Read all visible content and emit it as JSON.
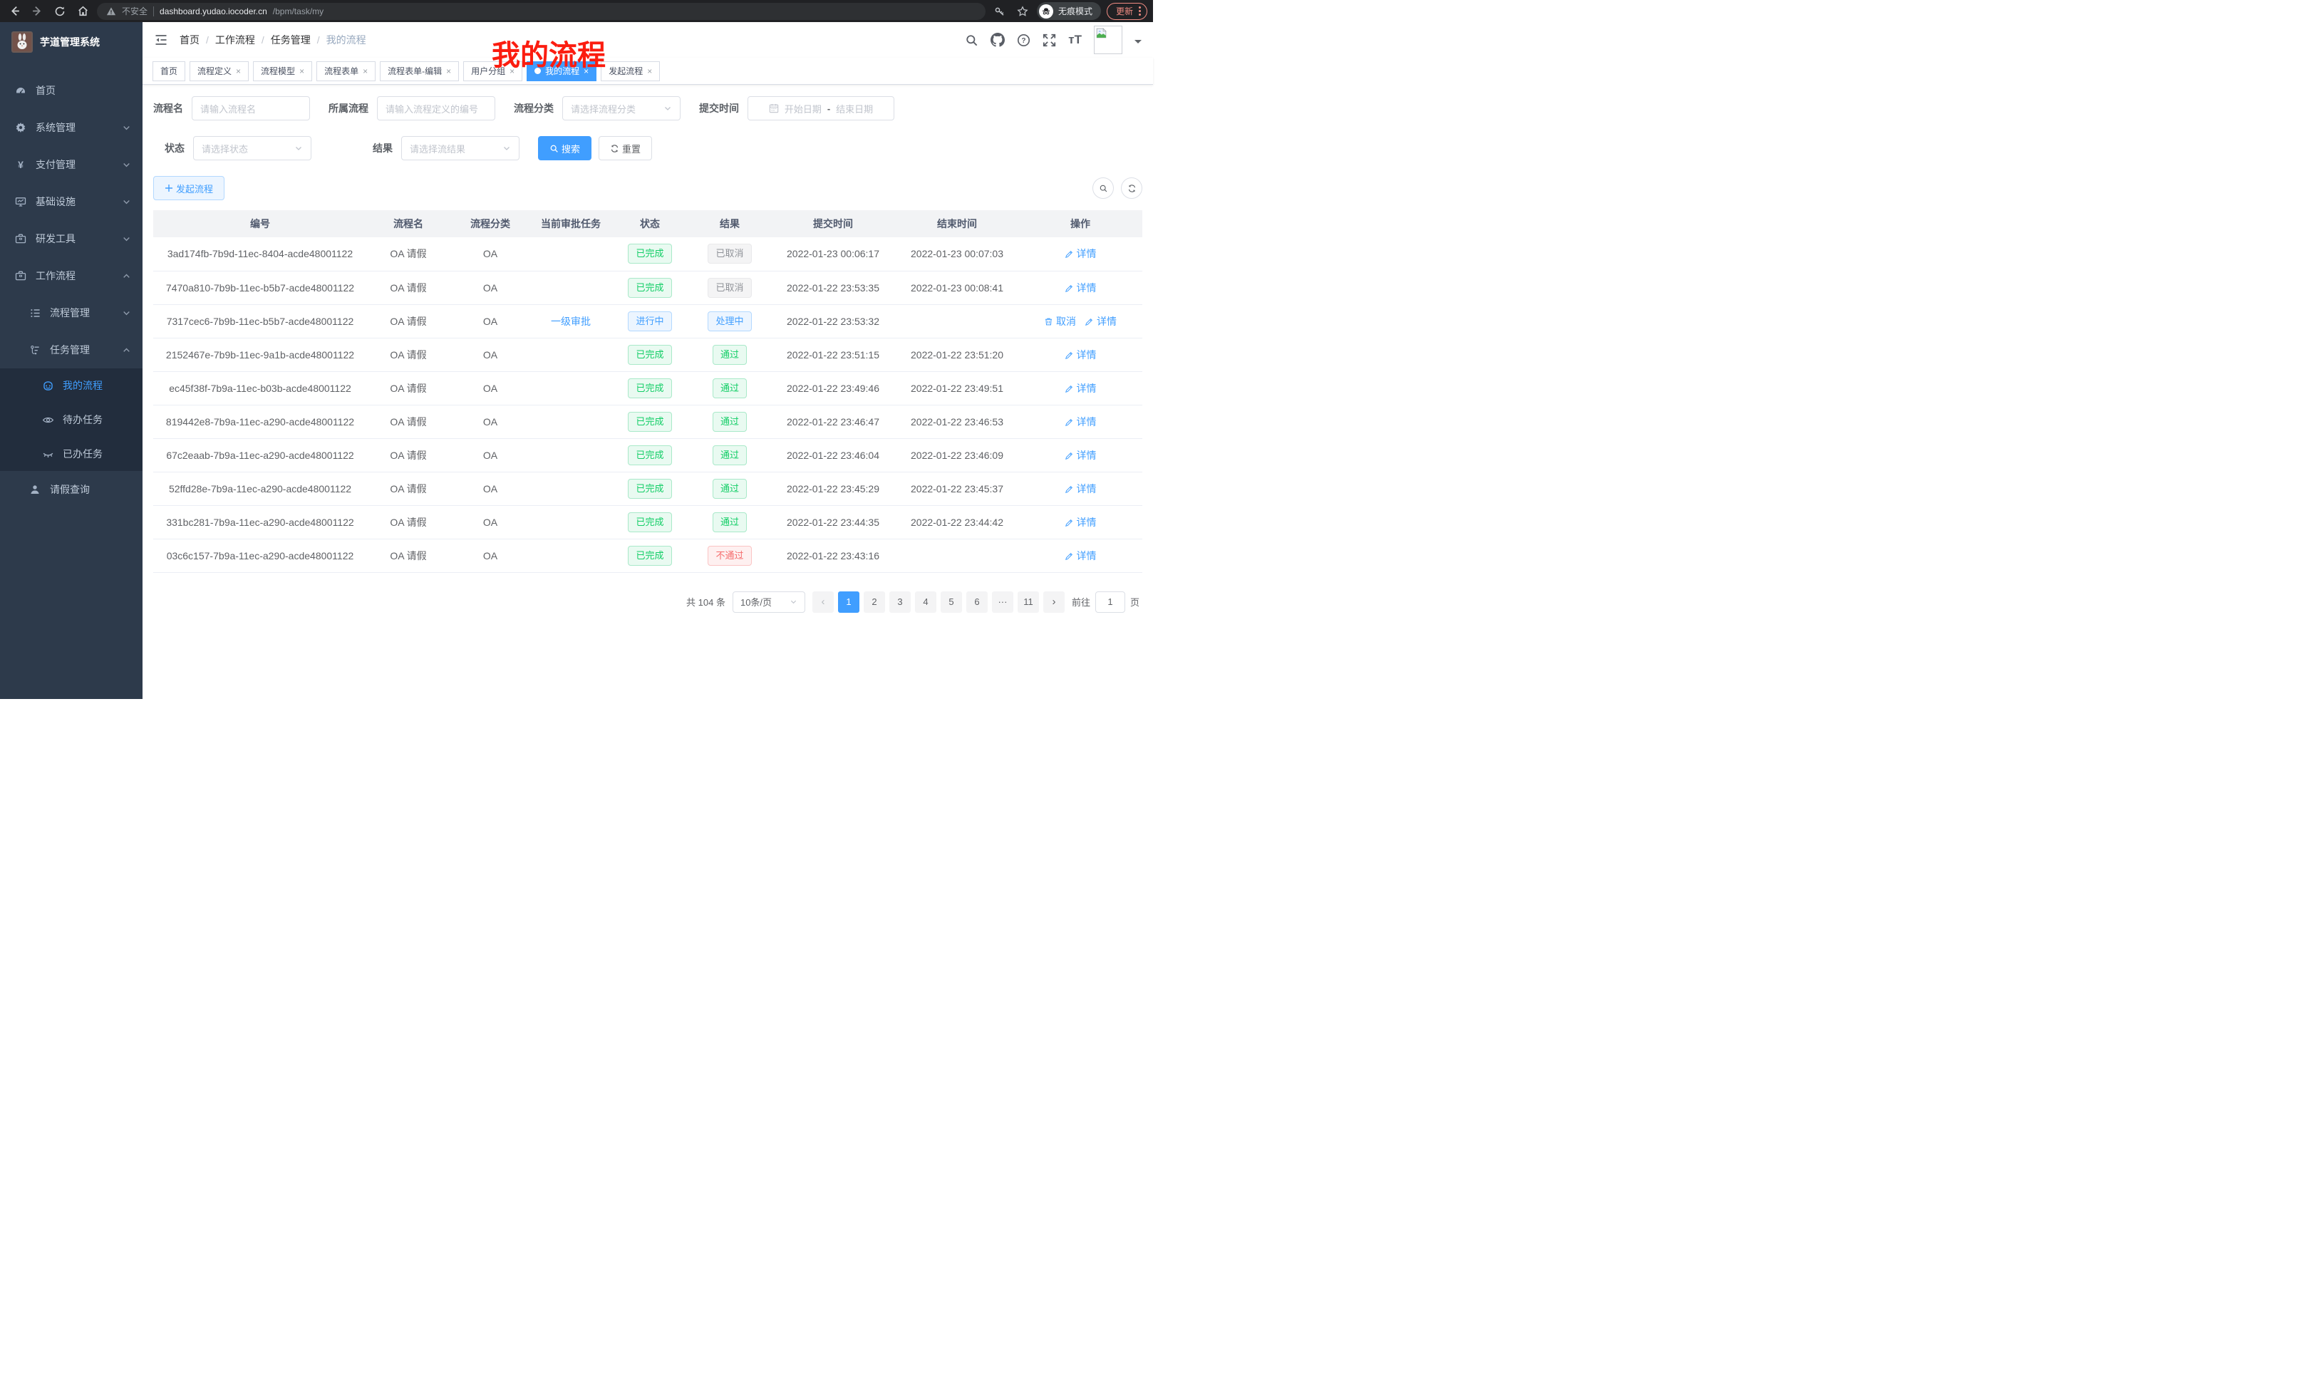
{
  "browser": {
    "security_label": "不安全",
    "url_host": "dashboard.yudao.iocoder.cn",
    "url_path": "/bpm/task/my",
    "incognito_label": "无痕模式",
    "update_label": "更新",
    "nav_icons": [
      "back-icon",
      "forward-icon",
      "reload-icon",
      "home-icon"
    ],
    "omnibox_icons": [
      "warning-icon",
      "key-icon",
      "star-icon"
    ]
  },
  "sidebar": {
    "title": "芋道管理系统",
    "logo_icon": "bunny-avatar",
    "items": [
      {
        "label": "首页",
        "icon": "gauge-icon",
        "indent": 1,
        "chevron": "",
        "active": false
      },
      {
        "label": "系统管理",
        "icon": "gear-icon",
        "indent": 1,
        "chevron": "down",
        "active": false
      },
      {
        "label": "支付管理",
        "icon": "yen-icon",
        "indent": 1,
        "chevron": "down",
        "active": false
      },
      {
        "label": "基础设施",
        "icon": "monitor-icon",
        "indent": 1,
        "chevron": "down",
        "active": false
      },
      {
        "label": "研发工具",
        "icon": "briefcase-icon",
        "indent": 1,
        "chevron": "down",
        "active": false
      },
      {
        "label": "工作流程",
        "icon": "briefcase-icon",
        "indent": 1,
        "chevron": "up",
        "active": false
      },
      {
        "label": "流程管理",
        "icon": "list-tree-icon",
        "indent": 2,
        "chevron": "down",
        "active": false
      },
      {
        "label": "任务管理",
        "icon": "flow-icon",
        "indent": 2,
        "chevron": "up",
        "active": false
      },
      {
        "label": "我的流程",
        "icon": "robot-icon",
        "indent": 3,
        "chevron": "",
        "active": true
      },
      {
        "label": "待办任务",
        "icon": "eye-open-icon",
        "indent": 3,
        "chevron": "",
        "active": false
      },
      {
        "label": "已办任务",
        "icon": "eye-closed-icon",
        "indent": 3,
        "chevron": "",
        "active": false
      },
      {
        "label": "请假查询",
        "icon": "user-icon",
        "indent": 2,
        "chevron": "",
        "active": false
      }
    ]
  },
  "navbar": {
    "breadcrumb": [
      "首页",
      "工作流程",
      "任务管理",
      "我的流程"
    ],
    "tool_icons": [
      "search-icon",
      "github-icon",
      "help-icon",
      "fullscreen-icon",
      "font-size-icon",
      "avatar-image",
      "caret-down-icon"
    ],
    "annotation": "我的流程"
  },
  "tabs": [
    {
      "label": "首页",
      "closable": false,
      "active": false
    },
    {
      "label": "流程定义",
      "closable": true,
      "active": false
    },
    {
      "label": "流程模型",
      "closable": true,
      "active": false
    },
    {
      "label": "流程表单",
      "closable": true,
      "active": false
    },
    {
      "label": "流程表单-编辑",
      "closable": true,
      "active": false
    },
    {
      "label": "用户分组",
      "closable": true,
      "active": false
    },
    {
      "label": "我的流程",
      "closable": true,
      "active": true
    },
    {
      "label": "发起流程",
      "closable": true,
      "active": false
    }
  ],
  "filters": {
    "name_label": "流程名",
    "name_placeholder": "请输入流程名",
    "definition_label": "所属流程",
    "definition_placeholder": "请输入流程定义的编号",
    "category_label": "流程分类",
    "category_placeholder": "请选择流程分类",
    "time_label": "提交时间",
    "time_start_placeholder": "开始日期",
    "time_separator": "-",
    "time_end_placeholder": "结束日期",
    "status_label": "状态",
    "status_placeholder": "请选择状态",
    "result_label": "结果",
    "result_placeholder": "请选择流结果",
    "search_label": "搜索",
    "reset_label": "重置"
  },
  "toolbar": {
    "create_label": "发起流程"
  },
  "table": {
    "headers": [
      "编号",
      "流程名",
      "流程分类",
      "当前审批任务",
      "状态",
      "结果",
      "提交时间",
      "结束时间",
      "操作"
    ],
    "rows": [
      {
        "id": "3ad174fb-7b9d-11ec-8404-acde48001122",
        "name": "OA 请假",
        "category": "OA",
        "task": "",
        "status": {
          "text": "已完成",
          "type": "success"
        },
        "result": {
          "text": "已取消",
          "type": "info"
        },
        "submit": "2022-01-23 00:06:17",
        "end": "2022-01-23 00:07:03",
        "actions": [
          {
            "text": "详情",
            "icon": "edit-icon"
          }
        ]
      },
      {
        "id": "7470a810-7b9b-11ec-b5b7-acde48001122",
        "name": "OA 请假",
        "category": "OA",
        "task": "",
        "status": {
          "text": "已完成",
          "type": "success"
        },
        "result": {
          "text": "已取消",
          "type": "info"
        },
        "submit": "2022-01-22 23:53:35",
        "end": "2022-01-23 00:08:41",
        "actions": [
          {
            "text": "详情",
            "icon": "edit-icon"
          }
        ]
      },
      {
        "id": "7317cec6-7b9b-11ec-b5b7-acde48001122",
        "name": "OA 请假",
        "category": "OA",
        "task": "一级审批",
        "status": {
          "text": "进行中",
          "type": "primary"
        },
        "result": {
          "text": "处理中",
          "type": "primary"
        },
        "submit": "2022-01-22 23:53:32",
        "end": "",
        "actions": [
          {
            "text": "取消",
            "icon": "trash-icon"
          },
          {
            "text": "详情",
            "icon": "edit-icon"
          }
        ]
      },
      {
        "id": "2152467e-7b9b-11ec-9a1b-acde48001122",
        "name": "OA 请假",
        "category": "OA",
        "task": "",
        "status": {
          "text": "已完成",
          "type": "success"
        },
        "result": {
          "text": "通过",
          "type": "success"
        },
        "submit": "2022-01-22 23:51:15",
        "end": "2022-01-22 23:51:20",
        "actions": [
          {
            "text": "详情",
            "icon": "edit-icon"
          }
        ]
      },
      {
        "id": "ec45f38f-7b9a-11ec-b03b-acde48001122",
        "name": "OA 请假",
        "category": "OA",
        "task": "",
        "status": {
          "text": "已完成",
          "type": "success"
        },
        "result": {
          "text": "通过",
          "type": "success"
        },
        "submit": "2022-01-22 23:49:46",
        "end": "2022-01-22 23:49:51",
        "actions": [
          {
            "text": "详情",
            "icon": "edit-icon"
          }
        ]
      },
      {
        "id": "819442e8-7b9a-11ec-a290-acde48001122",
        "name": "OA 请假",
        "category": "OA",
        "task": "",
        "status": {
          "text": "已完成",
          "type": "success"
        },
        "result": {
          "text": "通过",
          "type": "success"
        },
        "submit": "2022-01-22 23:46:47",
        "end": "2022-01-22 23:46:53",
        "actions": [
          {
            "text": "详情",
            "icon": "edit-icon"
          }
        ]
      },
      {
        "id": "67c2eaab-7b9a-11ec-a290-acde48001122",
        "name": "OA 请假",
        "category": "OA",
        "task": "",
        "status": {
          "text": "已完成",
          "type": "success"
        },
        "result": {
          "text": "通过",
          "type": "success"
        },
        "submit": "2022-01-22 23:46:04",
        "end": "2022-01-22 23:46:09",
        "actions": [
          {
            "text": "详情",
            "icon": "edit-icon"
          }
        ]
      },
      {
        "id": "52ffd28e-7b9a-11ec-a290-acde48001122",
        "name": "OA 请假",
        "category": "OA",
        "task": "",
        "status": {
          "text": "已完成",
          "type": "success"
        },
        "result": {
          "text": "通过",
          "type": "success"
        },
        "submit": "2022-01-22 23:45:29",
        "end": "2022-01-22 23:45:37",
        "actions": [
          {
            "text": "详情",
            "icon": "edit-icon"
          }
        ]
      },
      {
        "id": "331bc281-7b9a-11ec-a290-acde48001122",
        "name": "OA 请假",
        "category": "OA",
        "task": "",
        "status": {
          "text": "已完成",
          "type": "success"
        },
        "result": {
          "text": "通过",
          "type": "success"
        },
        "submit": "2022-01-22 23:44:35",
        "end": "2022-01-22 23:44:42",
        "actions": [
          {
            "text": "详情",
            "icon": "edit-icon"
          }
        ]
      },
      {
        "id": "03c6c157-7b9a-11ec-a290-acde48001122",
        "name": "OA 请假",
        "category": "OA",
        "task": "",
        "status": {
          "text": "已完成",
          "type": "success"
        },
        "result": {
          "text": "不通过",
          "type": "danger"
        },
        "submit": "2022-01-22 23:43:16",
        "end": "",
        "actions": [
          {
            "text": "详情",
            "icon": "edit-icon"
          }
        ]
      }
    ]
  },
  "pagination": {
    "total_label": "共 104 条",
    "page_size": "10条/页",
    "pages": [
      "1",
      "2",
      "3",
      "4",
      "5",
      "6",
      "···",
      "11"
    ],
    "active_page": "1",
    "goto_label": "前往",
    "goto_value": "1",
    "goto_suffix": "页"
  },
  "colors": {
    "accent": "#409eff",
    "success": "#12ce66",
    "info": "#909399",
    "danger": "#f56c6c",
    "sidebar_bg": "#2d3a4b",
    "chrome_bg": "#202124",
    "annotation_red": "#fb1d10"
  }
}
